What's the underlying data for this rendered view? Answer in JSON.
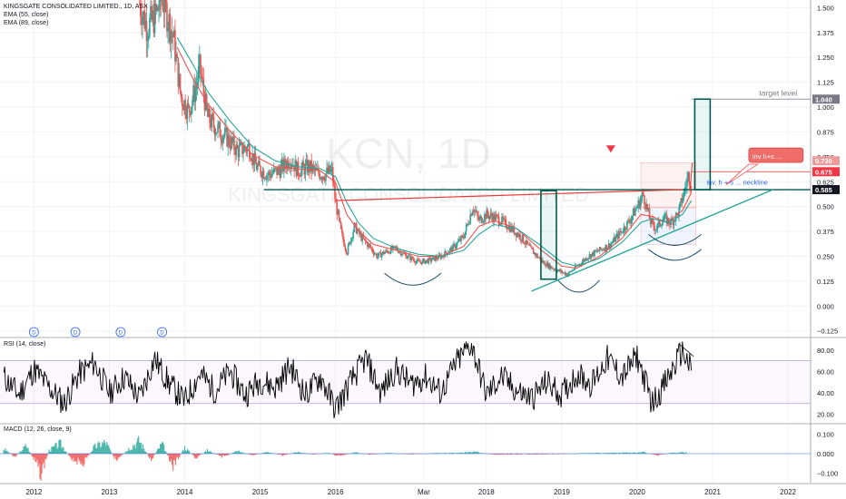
{
  "header": {
    "symbol_title": "KINGSGATE CONSOLIDATED LIMITED., 1D, ASX",
    "ema1_label": "EMA (55, close)",
    "ema2_label": "EMA (89, close)"
  },
  "watermark": {
    "symbol": "KCN, 1D",
    "name": "KINGSGATE CONSOLIDATED LIMITED"
  },
  "dividend_badge": "D",
  "colors": {
    "up": "#26a69a",
    "down": "#ef5350",
    "ema55": "#ef5350",
    "ema89": "#26a69a",
    "neckline": "#e53935",
    "trend": "#26a69a",
    "rsi": "#000000",
    "rsi_band": "#9c27b0",
    "target_label": "#787b86",
    "horizontal": "#005a4e"
  },
  "chart_data": [
    {
      "type": "candlestick",
      "title": "KINGSGATE CONSOLIDATED LIMITED., 1D, ASX",
      "x_ticks": [
        "2012",
        "2013",
        "2014",
        "2015",
        "2016",
        "Mar",
        "2018",
        "2019",
        "2020",
        "2021",
        "2022"
      ],
      "x_tick_dates": [
        2012.0,
        2013.0,
        2014.0,
        2015.0,
        2016.0,
        2017.17,
        2018.0,
        2019.0,
        2020.0,
        2021.0,
        2022.0
      ],
      "y_ticks": [
        1.5,
        1.375,
        1.25,
        1.125,
        1.0,
        0.875,
        0.75,
        0.625,
        0.5,
        0.375,
        0.25,
        0.125,
        0.0,
        -0.125
      ],
      "y_tick_labels": [
        "1.500",
        "1.375",
        "1.250",
        "1.125",
        "1.000",
        "0.875",
        "0.750",
        "0.625",
        "0.500",
        "0.375",
        "0.250",
        "0.125",
        "0.000",
        "−0.125"
      ],
      "ylim": [
        -0.14,
        1.52
      ],
      "xlim": [
        2011.55,
        2022.3
      ],
      "price_series": [
        [
          2013.4,
          1.52
        ],
        [
          2013.5,
          1.4
        ],
        [
          2013.6,
          1.45
        ],
        [
          2013.7,
          1.55
        ],
        [
          2013.85,
          1.35
        ],
        [
          2013.95,
          1.05
        ],
        [
          2014.05,
          0.98
        ],
        [
          2014.15,
          1.1
        ],
        [
          2014.2,
          1.2
        ],
        [
          2014.3,
          0.95
        ],
        [
          2014.4,
          0.9
        ],
        [
          2014.55,
          0.85
        ],
        [
          2014.7,
          0.78
        ],
        [
          2014.85,
          0.8
        ],
        [
          2014.95,
          0.7
        ],
        [
          2015.1,
          0.66
        ],
        [
          2015.25,
          0.68
        ],
        [
          2015.4,
          0.74
        ],
        [
          2015.5,
          0.68
        ],
        [
          2015.65,
          0.7
        ],
        [
          2015.75,
          0.67
        ],
        [
          2015.85,
          0.66
        ],
        [
          2015.95,
          0.68
        ],
        [
          2016.0,
          0.52
        ],
        [
          2016.08,
          0.36
        ],
        [
          2016.15,
          0.27
        ],
        [
          2016.25,
          0.4
        ],
        [
          2016.35,
          0.34
        ],
        [
          2016.45,
          0.3
        ],
        [
          2016.55,
          0.25
        ],
        [
          2016.65,
          0.27
        ],
        [
          2016.8,
          0.29
        ],
        [
          2016.95,
          0.25
        ],
        [
          2017.1,
          0.22
        ],
        [
          2017.25,
          0.23
        ],
        [
          2017.4,
          0.25
        ],
        [
          2017.55,
          0.29
        ],
        [
          2017.7,
          0.35
        ],
        [
          2017.82,
          0.5
        ],
        [
          2017.9,
          0.43
        ],
        [
          2018.0,
          0.46
        ],
        [
          2018.15,
          0.44
        ],
        [
          2018.3,
          0.4
        ],
        [
          2018.45,
          0.35
        ],
        [
          2018.6,
          0.28
        ],
        [
          2018.75,
          0.22
        ],
        [
          2018.88,
          0.19
        ],
        [
          2019.0,
          0.17
        ],
        [
          2019.08,
          0.16
        ],
        [
          2019.2,
          0.2
        ],
        [
          2019.35,
          0.25
        ],
        [
          2019.5,
          0.28
        ],
        [
          2019.65,
          0.31
        ],
        [
          2019.8,
          0.38
        ],
        [
          2019.9,
          0.43
        ],
        [
          2020.0,
          0.5
        ],
        [
          2020.08,
          0.56
        ],
        [
          2020.18,
          0.42
        ],
        [
          2020.25,
          0.39
        ],
        [
          2020.35,
          0.44
        ],
        [
          2020.45,
          0.42
        ],
        [
          2020.55,
          0.47
        ],
        [
          2020.62,
          0.57
        ],
        [
          2020.68,
          0.66
        ],
        [
          2020.72,
          0.62
        ]
      ],
      "ema55": [
        [
          2013.9,
          1.3
        ],
        [
          2014.1,
          1.15
        ],
        [
          2014.3,
          1.02
        ],
        [
          2014.6,
          0.88
        ],
        [
          2014.9,
          0.76
        ],
        [
          2015.2,
          0.7
        ],
        [
          2015.5,
          0.69
        ],
        [
          2015.8,
          0.68
        ],
        [
          2016.0,
          0.62
        ],
        [
          2016.15,
          0.46
        ],
        [
          2016.3,
          0.38
        ],
        [
          2016.5,
          0.31
        ],
        [
          2016.8,
          0.28
        ],
        [
          2017.1,
          0.25
        ],
        [
          2017.4,
          0.25
        ],
        [
          2017.7,
          0.3
        ],
        [
          2017.9,
          0.4
        ],
        [
          2018.1,
          0.43
        ],
        [
          2018.4,
          0.39
        ],
        [
          2018.7,
          0.29
        ],
        [
          2019.0,
          0.2
        ],
        [
          2019.2,
          0.19
        ],
        [
          2019.5,
          0.25
        ],
        [
          2019.8,
          0.34
        ],
        [
          2020.05,
          0.46
        ],
        [
          2020.2,
          0.45
        ],
        [
          2020.4,
          0.42
        ],
        [
          2020.6,
          0.48
        ],
        [
          2020.72,
          0.57
        ]
      ],
      "ema89": [
        [
          2013.9,
          1.35
        ],
        [
          2014.1,
          1.22
        ],
        [
          2014.3,
          1.08
        ],
        [
          2014.6,
          0.93
        ],
        [
          2014.9,
          0.8
        ],
        [
          2015.2,
          0.73
        ],
        [
          2015.5,
          0.7
        ],
        [
          2015.8,
          0.69
        ],
        [
          2016.0,
          0.65
        ],
        [
          2016.15,
          0.52
        ],
        [
          2016.3,
          0.42
        ],
        [
          2016.5,
          0.34
        ],
        [
          2016.8,
          0.29
        ],
        [
          2017.1,
          0.26
        ],
        [
          2017.4,
          0.25
        ],
        [
          2017.7,
          0.28
        ],
        [
          2017.9,
          0.36
        ],
        [
          2018.1,
          0.41
        ],
        [
          2018.4,
          0.39
        ],
        [
          2018.7,
          0.31
        ],
        [
          2019.0,
          0.22
        ],
        [
          2019.2,
          0.2
        ],
        [
          2019.5,
          0.24
        ],
        [
          2019.8,
          0.32
        ],
        [
          2020.05,
          0.42
        ],
        [
          2020.2,
          0.44
        ],
        [
          2020.4,
          0.42
        ],
        [
          2020.6,
          0.46
        ],
        [
          2020.72,
          0.53
        ]
      ],
      "price_labels": [
        {
          "value": 1.04,
          "text": "1.040"
        },
        {
          "value": 0.73,
          "text": "0.730"
        },
        {
          "value": 0.675,
          "text": "0.675"
        },
        {
          "value": 0.585,
          "text": "0.585"
        }
      ],
      "annotations": {
        "target_text": "target level",
        "target_value": 1.04,
        "inv_hs_text": "inv h+s ...",
        "neckline_text": "inv. h + s ... neckline",
        "horizontal_value": 0.585
      },
      "neckline": [
        [
          2016.0,
          0.53
        ],
        [
          2020.6,
          0.585
        ]
      ],
      "trendline": [
        [
          2018.6,
          0.075
        ],
        [
          2021.8,
          0.585
        ]
      ],
      "arcs": [
        {
          "from": [
            2016.65,
            0.165
          ],
          "to": [
            2017.4,
            0.165
          ],
          "depth": 0.06
        },
        {
          "from": [
            2018.95,
            0.13
          ],
          "to": [
            2019.5,
            0.13
          ],
          "depth": 0.06
        },
        {
          "from": [
            2020.15,
            0.36
          ],
          "to": [
            2020.85,
            0.36
          ],
          "depth": 0.055
        },
        {
          "from": [
            2020.15,
            0.285
          ],
          "to": [
            2020.85,
            0.285
          ],
          "depth": 0.055
        }
      ],
      "measure_boxes": [
        {
          "x": 2018.82,
          "y0": 0.135,
          "y1": 0.58
        },
        {
          "x": 2020.86,
          "y0": 0.585,
          "y1": 1.04
        }
      ],
      "pattern_box": {
        "x0": 2020.05,
        "x1": 2020.78,
        "y0": 0.31,
        "y1": 0.72
      },
      "down_arrow": [
        2019.65,
        0.78
      ],
      "dividends": [
        2012.0,
        2012.55,
        2013.15,
        2013.7
      ]
    },
    {
      "type": "line",
      "name": "RSI",
      "label": "RSI (14, close)",
      "y_ticks": [
        80,
        60,
        40,
        20
      ],
      "y_tick_labels": [
        "80.00",
        "60.00",
        "40.00",
        "20.00"
      ],
      "band": [
        30,
        70
      ],
      "ylim": [
        12,
        90
      ],
      "values": [
        [
          2011.6,
          55
        ],
        [
          2011.8,
          38
        ],
        [
          2012.0,
          62
        ],
        [
          2012.2,
          45
        ],
        [
          2012.4,
          30
        ],
        [
          2012.6,
          58
        ],
        [
          2012.8,
          68
        ],
        [
          2013.0,
          40
        ],
        [
          2013.2,
          55
        ],
        [
          2013.4,
          35
        ],
        [
          2013.6,
          72
        ],
        [
          2013.8,
          48
        ],
        [
          2014.0,
          32
        ],
        [
          2014.2,
          58
        ],
        [
          2014.4,
          42
        ],
        [
          2014.6,
          60
        ],
        [
          2014.8,
          38
        ],
        [
          2015.0,
          52
        ],
        [
          2015.2,
          45
        ],
        [
          2015.4,
          65
        ],
        [
          2015.6,
          38
        ],
        [
          2015.8,
          55
        ],
        [
          2016.0,
          25
        ],
        [
          2016.2,
          50
        ],
        [
          2016.4,
          72
        ],
        [
          2016.6,
          40
        ],
        [
          2016.8,
          62
        ],
        [
          2017.0,
          48
        ],
        [
          2017.2,
          55
        ],
        [
          2017.4,
          40
        ],
        [
          2017.6,
          68
        ],
        [
          2017.8,
          86
        ],
        [
          2018.0,
          38
        ],
        [
          2018.2,
          55
        ],
        [
          2018.4,
          42
        ],
        [
          2018.6,
          35
        ],
        [
          2018.8,
          50
        ],
        [
          2019.0,
          38
        ],
        [
          2019.2,
          58
        ],
        [
          2019.4,
          48
        ],
        [
          2019.6,
          72
        ],
        [
          2019.8,
          55
        ],
        [
          2020.0,
          74
        ],
        [
          2020.2,
          30
        ],
        [
          2020.4,
          52
        ],
        [
          2020.6,
          80
        ],
        [
          2020.72,
          60
        ]
      ]
    },
    {
      "type": "bar",
      "name": "MACD",
      "label": "MACD (12, 26, close, 9)",
      "y_ticks": [
        0.1,
        0.0,
        -0.1
      ],
      "y_tick_labels": [
        "0.100",
        "0.000",
        "−0.100"
      ],
      "ylim": [
        -0.15,
        0.15
      ],
      "histogram": [
        [
          2011.6,
          0.03
        ],
        [
          2011.75,
          -0.02
        ],
        [
          2011.9,
          0.05
        ],
        [
          2012.0,
          -0.04
        ],
        [
          2012.1,
          -0.12
        ],
        [
          2012.2,
          0.02
        ],
        [
          2012.35,
          0.06
        ],
        [
          2012.5,
          -0.03
        ],
        [
          2012.65,
          -0.06
        ],
        [
          2012.8,
          0.04
        ],
        [
          2012.95,
          0.07
        ],
        [
          2013.1,
          -0.05
        ],
        [
          2013.25,
          0.03
        ],
        [
          2013.4,
          0.08
        ],
        [
          2013.55,
          -0.04
        ],
        [
          2013.7,
          0.06
        ],
        [
          2013.85,
          -0.08
        ],
        [
          2014.0,
          0.04
        ],
        [
          2014.15,
          -0.03
        ],
        [
          2014.3,
          0.02
        ],
        [
          2014.5,
          -0.02
        ],
        [
          2014.7,
          0.015
        ],
        [
          2014.9,
          -0.01
        ],
        [
          2015.1,
          0.01
        ],
        [
          2015.3,
          -0.01
        ],
        [
          2015.5,
          0.01
        ],
        [
          2015.7,
          -0.005
        ],
        [
          2015.9,
          0.005
        ],
        [
          2016.05,
          -0.015
        ],
        [
          2016.25,
          0.008
        ],
        [
          2016.45,
          -0.006
        ],
        [
          2016.7,
          0.004
        ],
        [
          2017.0,
          -0.004
        ],
        [
          2017.3,
          0.003
        ],
        [
          2017.6,
          0.004
        ],
        [
          2017.85,
          0.01
        ],
        [
          2018.1,
          -0.006
        ],
        [
          2018.4,
          -0.005
        ],
        [
          2018.7,
          -0.004
        ],
        [
          2019.0,
          -0.003
        ],
        [
          2019.3,
          0.003
        ],
        [
          2019.6,
          0.004
        ],
        [
          2019.9,
          0.006
        ],
        [
          2020.1,
          0.008
        ],
        [
          2020.25,
          -0.01
        ],
        [
          2020.45,
          0.004
        ],
        [
          2020.65,
          0.008
        ]
      ]
    }
  ]
}
